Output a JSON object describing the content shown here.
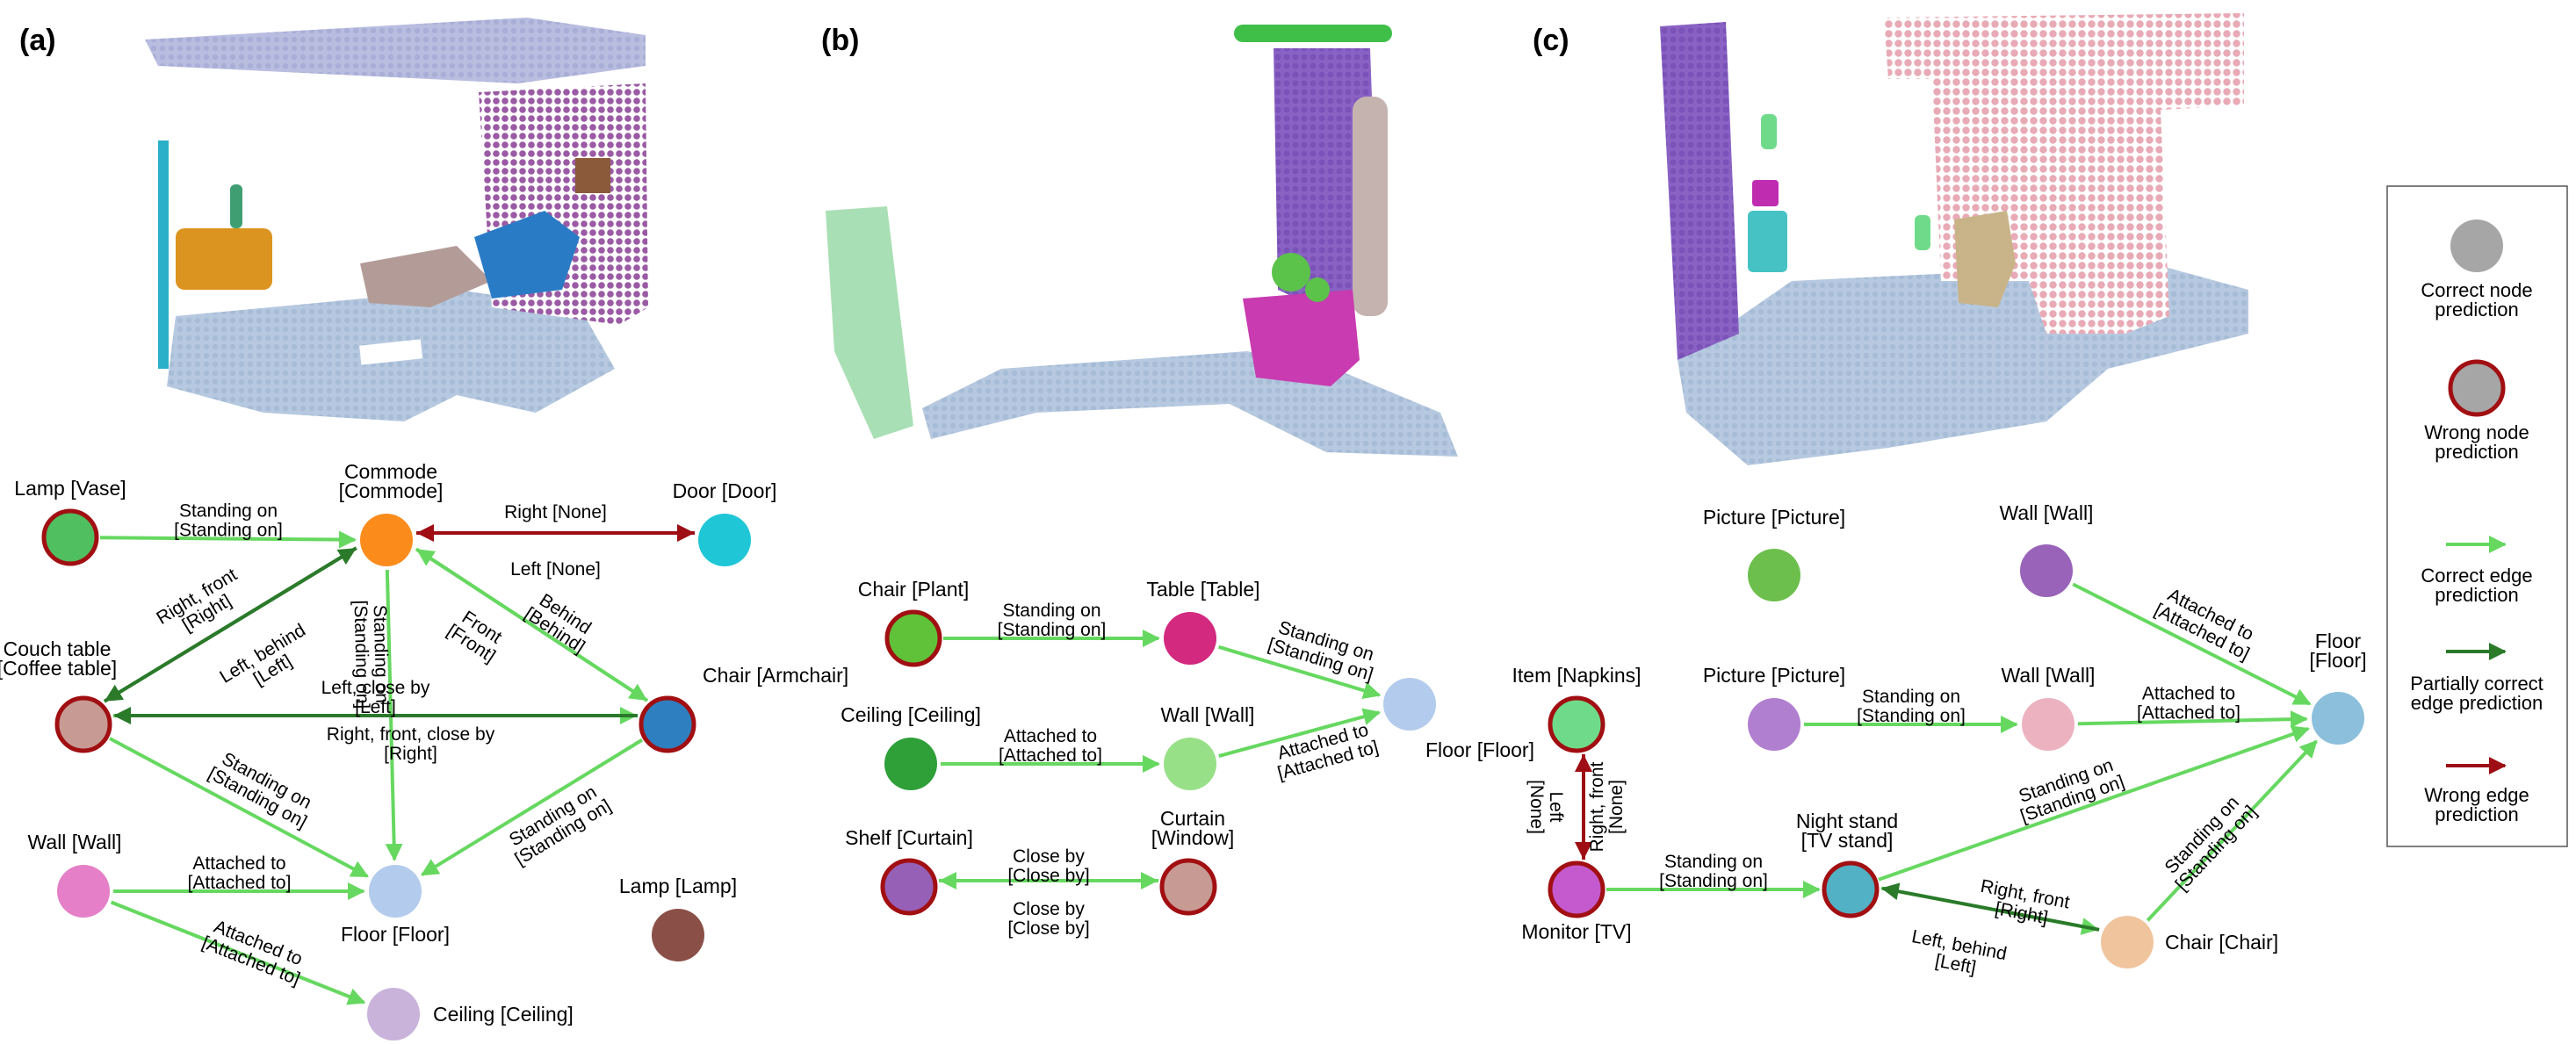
{
  "colors": {
    "correct_edge": "#66d860",
    "partial_edge": "#2a7a2a",
    "wrong_edge": "#9e0e14",
    "wrong_ring": "#a10f12",
    "floor_pc": "#b6c9e0"
  },
  "panels": [
    {
      "id": "a",
      "letter": "(a)",
      "nodes": [
        {
          "id": "lamp_vase",
          "label": "Lamp [Vase]",
          "color": "#4fbf5f",
          "wrong": true
        },
        {
          "id": "commode",
          "label": "Commode\n[Commode]",
          "color": "#fb8c1c",
          "wrong": false
        },
        {
          "id": "door",
          "label": "Door [Door]",
          "color": "#1fc6d6",
          "wrong": false
        },
        {
          "id": "couch_table",
          "label": "Couch table\n[Coffee table]",
          "color": "#c79b93",
          "wrong": true
        },
        {
          "id": "chair_arm",
          "label": "Chair [Armchair]",
          "color": "#2e7fbf",
          "wrong": true
        },
        {
          "id": "wall_a",
          "label": "Wall [Wall]",
          "color": "#e57fc7",
          "wrong": false
        },
        {
          "id": "floor_a",
          "label": "Floor [Floor]",
          "color": "#b3cbec",
          "wrong": false
        },
        {
          "id": "lamp_lamp",
          "label": "Lamp [Lamp]",
          "color": "#8a5048",
          "wrong": false
        },
        {
          "id": "ceiling_a",
          "label": "Ceiling [Ceiling]",
          "color": "#c9b3db",
          "wrong": false
        }
      ],
      "edges": [
        {
          "from": "lamp_vase",
          "to": "commode",
          "label": "Standing on\n[Standing on]",
          "type": "correct"
        },
        {
          "from": "commode",
          "to": "door",
          "label": "Right [None]",
          "type": "wrong"
        },
        {
          "from": "door",
          "to": "commode",
          "label": "Left [None]",
          "type": "wrong"
        },
        {
          "from": "couch_table",
          "to": "commode",
          "label": "Right, front\n[Right]",
          "type": "partial"
        },
        {
          "from": "commode",
          "to": "couch_table",
          "label": "Left, behind\n[Left]",
          "type": "partial"
        },
        {
          "from": "commode",
          "to": "chair_arm",
          "label": "Front\n[Front]",
          "type": "correct"
        },
        {
          "from": "chair_arm",
          "to": "commode",
          "label": "Behind\n[Behind]",
          "type": "correct"
        },
        {
          "from": "commode",
          "to": "floor_a",
          "label": "Standing on\n[Standing on]",
          "type": "correct"
        },
        {
          "from": "couch_table",
          "to": "chair_arm",
          "label": "Left, close by\n[Left]",
          "type": "correct"
        },
        {
          "from": "chair_arm",
          "to": "couch_table",
          "label": "Right, front, close by\n[Right]",
          "type": "partial"
        },
        {
          "from": "couch_table",
          "to": "floor_a",
          "label": "Standing on\n[Standing on]",
          "type": "correct"
        },
        {
          "from": "chair_arm",
          "to": "floor_a",
          "label": "Standing on\n[Standing on]",
          "type": "correct"
        },
        {
          "from": "wall_a",
          "to": "floor_a",
          "label": "Attached to\n[Attached to]",
          "type": "correct"
        },
        {
          "from": "wall_a",
          "to": "ceiling_a",
          "label": "Attached to\n[Attached to]",
          "type": "correct"
        }
      ]
    },
    {
      "id": "b",
      "letter": "(b)",
      "nodes": [
        {
          "id": "chair_plant",
          "label": "Chair [Plant]",
          "color": "#5fc238",
          "wrong": true
        },
        {
          "id": "table_b",
          "label": "Table [Table]",
          "color": "#d3297f",
          "wrong": false
        },
        {
          "id": "floor_b",
          "label": "Floor [Floor]",
          "color": "#b3cbec",
          "wrong": false
        },
        {
          "id": "ceiling_b",
          "label": "Ceiling [Ceiling]",
          "color": "#2f9f38",
          "wrong": false
        },
        {
          "id": "wall_b",
          "label": "Wall [Wall]",
          "color": "#98e088",
          "wrong": false
        },
        {
          "id": "shelf_curtain",
          "label": "Shelf [Curtain]",
          "color": "#9660b7",
          "wrong": true
        },
        {
          "id": "curtain_window",
          "label": "Curtain\n[Window]",
          "color": "#c79b93",
          "wrong": true
        }
      ],
      "edges": [
        {
          "from": "chair_plant",
          "to": "table_b",
          "label": "Standing on\n[Standing on]",
          "type": "correct"
        },
        {
          "from": "table_b",
          "to": "floor_b",
          "label": "Standing on\n[Standing on]",
          "type": "correct"
        },
        {
          "from": "ceiling_b",
          "to": "wall_b",
          "label": "Attached to\n[Attached to]",
          "type": "correct"
        },
        {
          "from": "wall_b",
          "to": "floor_b",
          "label": "Attached to\n[Attached to]",
          "type": "correct"
        },
        {
          "from": "shelf_curtain",
          "to": "curtain_window",
          "label": "Close by\n[Close by]",
          "type": "correct"
        },
        {
          "from": "curtain_window",
          "to": "shelf_curtain",
          "label": "Close by\n[Close by]",
          "type": "correct"
        }
      ]
    },
    {
      "id": "c",
      "letter": "(c)",
      "nodes": [
        {
          "id": "picture_1",
          "label": "Picture [Picture]",
          "color": "#6cbf4c",
          "wrong": false
        },
        {
          "id": "wall_c1",
          "label": "Wall [Wall]",
          "color": "#9863b8",
          "wrong": false
        },
        {
          "id": "floor_c",
          "label": "Floor\n[Floor]",
          "color": "#8cbfdb",
          "wrong": false
        },
        {
          "id": "item_napkins",
          "label": "Item [Napkins]",
          "color": "#6fdb8a",
          "wrong": true
        },
        {
          "id": "picture_2",
          "label": "Picture [Picture]",
          "color": "#b07fcf",
          "wrong": false
        },
        {
          "id": "wall_c2",
          "label": "Wall [Wall]",
          "color": "#ecb2c0",
          "wrong": false
        },
        {
          "id": "monitor_tv",
          "label": "Monitor [TV]",
          "color": "#c45acd",
          "wrong": true
        },
        {
          "id": "nightstand",
          "label": "Night stand\n[TV stand]",
          "color": "#52b1c4",
          "wrong": true
        },
        {
          "id": "chair_c",
          "label": "Chair [Chair]",
          "color": "#f0c49d",
          "wrong": false
        }
      ],
      "edges": [
        {
          "from": "wall_c1",
          "to": "floor_c",
          "label": "Attached to\n[Attached to]",
          "type": "correct"
        },
        {
          "from": "picture_2",
          "to": "wall_c2",
          "label": "Standing on\n[Standing on]",
          "type": "correct"
        },
        {
          "from": "wall_c2",
          "to": "floor_c",
          "label": "Attached to\n[Attached to]",
          "type": "correct"
        },
        {
          "from": "item_napkins",
          "to": "monitor_tv",
          "label": "Left\n[None]",
          "type": "wrong"
        },
        {
          "from": "monitor_tv",
          "to": "item_napkins",
          "label": "Right, front\n[None]",
          "type": "wrong"
        },
        {
          "from": "monitor_tv",
          "to": "nightstand",
          "label": "Standing on\n[Standing on]",
          "type": "correct"
        },
        {
          "from": "nightstand",
          "to": "floor_c",
          "label": "Standing on\n[Standing on]",
          "type": "correct"
        },
        {
          "from": "chair_c",
          "to": "floor_c",
          "label": "Standing on\n[Standing on]",
          "type": "correct"
        },
        {
          "from": "nightstand",
          "to": "chair_c",
          "label": "Right, front\n[Right]",
          "type": "correct"
        },
        {
          "from": "chair_c",
          "to": "nightstand",
          "label": "Left, behind\n[Left]",
          "type": "partial"
        }
      ]
    }
  ],
  "legend": {
    "correct_node": "Correct node\nprediction",
    "wrong_node": "Wrong node\nprediction",
    "correct_edge": "Correct edge\nprediction",
    "partial_edge": "Partially correct\nedge prediction",
    "wrong_edge": "Wrong edge\nprediction"
  }
}
